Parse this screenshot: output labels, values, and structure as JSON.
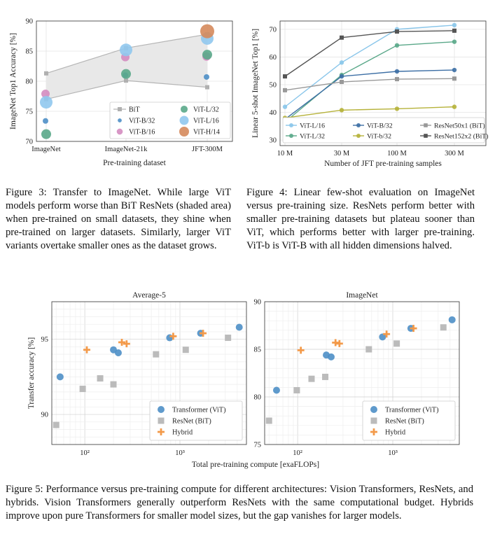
{
  "fig3": {
    "caption": "Figure 3: Transfer to ImageNet. While large ViT models perform worse than BiT ResNets (shaded area) when pre-trained on small datasets, they shine when pre-trained on larger datasets. Similarly, larger ViT variants overtake smaller ones as the dataset grows."
  },
  "fig4": {
    "caption": "Figure 4: Linear few-shot evaluation on ImageNet versus pre-training size. ResNets perform better with smaller pre-training datasets but plateau sooner than ViT, which performs better with larger pre-training. ViT-b is ViT-B with all hidden dimensions halved."
  },
  "fig5": {
    "caption": "Figure 5: Performance versus pre-training compute for different architectures: Vision Transformers, ResNets, and hybrids. Vision Transformers generally outperform ResNets with the same computational budget. Hybrids improve upon pure Transformers for smaller model sizes, but the gap vanishes for larger models.",
    "shared_xlabel": "Total pre-training compute [exaFLOPs]"
  },
  "chart_data": [
    {
      "id": "fig3",
      "type": "scatter",
      "title": "",
      "xlabel": "Pre-training dataset",
      "ylabel": "ImageNet Top1 Accuracy [%]",
      "categories": [
        "ImageNet",
        "ImageNet-21k",
        "JFT-300M"
      ],
      "ylim": [
        70,
        90
      ],
      "yticks": [
        70,
        75,
        80,
        85,
        90
      ],
      "bit_band": {
        "upper": [
          81.3,
          85.5,
          87.8
        ],
        "lower": [
          77.0,
          80.1,
          79.0
        ]
      },
      "series": [
        {
          "name": "BiT",
          "color": "#aaaaaa",
          "marker": "square",
          "values": []
        },
        {
          "name": "ViT-B/32",
          "color": "#4e8fc7",
          "size": 4,
          "values": [
            73.4,
            81.0,
            80.7
          ]
        },
        {
          "name": "ViT-B/16",
          "color": "#d48cc0",
          "size": 6,
          "values": [
            77.9,
            84.0,
            84.1
          ]
        },
        {
          "name": "ViT-L/32",
          "color": "#5aa889",
          "size": 7,
          "values": [
            71.2,
            81.2,
            84.4
          ]
        },
        {
          "name": "ViT-L/16",
          "color": "#90c8ee",
          "size": 9,
          "values": [
            76.5,
            85.2,
            87.1
          ]
        },
        {
          "name": "ViT-H/14",
          "color": "#d58a5c",
          "size": 10,
          "values": [
            null,
            null,
            88.3
          ]
        }
      ],
      "legend": "bottom-right"
    },
    {
      "id": "fig4",
      "type": "line",
      "title": "",
      "xlabel": "Number of JFT pre-training samples",
      "ylabel": "Linear 5-shot ImageNet Top1 [%]",
      "categories": [
        "10 M",
        "30 M",
        "100 M",
        "300 M"
      ],
      "ylim": [
        28,
        73
      ],
      "yticks": [
        30,
        40,
        50,
        60,
        70
      ],
      "series": [
        {
          "name": "ViT-L/16",
          "color": "#8ac6ea",
          "marker": "circle",
          "values": [
            42.0,
            58.0,
            70.0,
            71.5
          ]
        },
        {
          "name": "ViT-L/32",
          "color": "#5aa889",
          "marker": "circle",
          "values": [
            36.5,
            53.5,
            64.2,
            65.5
          ]
        },
        {
          "name": "ViT-B/32",
          "color": "#3d6fa5",
          "marker": "circle",
          "values": [
            37.5,
            53.0,
            54.8,
            55.3
          ]
        },
        {
          "name": "ViT-b/32",
          "color": "#b6b23a",
          "marker": "circle",
          "values": [
            38.0,
            40.8,
            41.3,
            42.0
          ]
        },
        {
          "name": "ResNet50x1 (BiT)",
          "color": "#999999",
          "marker": "square",
          "values": [
            48.0,
            51.0,
            52.0,
            52.2
          ]
        },
        {
          "name": "ResNet152x2 (BiT)",
          "color": "#555555",
          "marker": "square",
          "values": [
            53.0,
            67.0,
            69.2,
            69.5
          ]
        }
      ],
      "legend": "bottom-center"
    },
    {
      "id": "fig5a",
      "type": "scatter",
      "title": "Average-5",
      "xscale": "log",
      "xlim": [
        45,
        5000
      ],
      "xticks": [
        100,
        1000
      ],
      "xtick_labels": [
        "10²",
        "10³"
      ],
      "ylim": [
        88.0,
        97.5
      ],
      "yticks": [
        90,
        95
      ],
      "ylabel": "Transfer accuracy [%]",
      "series": [
        {
          "name": "Transformer (ViT)",
          "color": "#4e8fc7",
          "marker": "circle",
          "points": [
            [
              55,
              92.5
            ],
            [
              200,
              94.3
            ],
            [
              225,
              94.1
            ],
            [
              780,
              95.1
            ],
            [
              1650,
              95.4
            ],
            [
              4200,
              95.8
            ]
          ]
        },
        {
          "name": "ResNet (BiT)",
          "color": "#bbbbbb",
          "marker": "square",
          "points": [
            [
              50,
              89.3
            ],
            [
              95,
              91.7
            ],
            [
              145,
              92.4
            ],
            [
              200,
              92.0
            ],
            [
              560,
              94.0
            ],
            [
              1150,
              94.3
            ],
            [
              3200,
              95.1
            ]
          ]
        },
        {
          "name": "Hybrid",
          "color": "#f39a4a",
          "marker": "plus",
          "points": [
            [
              105,
              94.3
            ],
            [
              245,
              94.8
            ],
            [
              275,
              94.7
            ],
            [
              850,
              95.2
            ],
            [
              1750,
              95.4
            ]
          ]
        }
      ],
      "legend": "bottom-right"
    },
    {
      "id": "fig5b",
      "type": "scatter",
      "title": "ImageNet",
      "xscale": "log",
      "xlim": [
        45,
        5000
      ],
      "xticks": [
        100,
        1000
      ],
      "xtick_labels": [
        "10²",
        "10³"
      ],
      "ylim": [
        75,
        90
      ],
      "yticks": [
        75,
        80,
        85,
        90
      ],
      "series": [
        {
          "name": "Transformer (ViT)",
          "color": "#4e8fc7",
          "marker": "circle",
          "points": [
            [
              60,
              80.7
            ],
            [
              200,
              84.4
            ],
            [
              225,
              84.2
            ],
            [
              780,
              86.3
            ],
            [
              1550,
              87.2
            ],
            [
              4200,
              88.1
            ]
          ]
        },
        {
          "name": "ResNet (BiT)",
          "color": "#bbbbbb",
          "marker": "square",
          "points": [
            [
              50,
              77.5
            ],
            [
              98,
              80.7
            ],
            [
              140,
              81.9
            ],
            [
              195,
              82.1
            ],
            [
              560,
              85.0
            ],
            [
              1100,
              85.6
            ],
            [
              3400,
              87.3
            ]
          ]
        },
        {
          "name": "Hybrid",
          "color": "#f39a4a",
          "marker": "plus",
          "points": [
            [
              108,
              84.9
            ],
            [
              250,
              85.7
            ],
            [
              275,
              85.6
            ],
            [
              860,
              86.6
            ],
            [
              1650,
              87.2
            ]
          ]
        }
      ],
      "legend": "bottom-right"
    }
  ]
}
